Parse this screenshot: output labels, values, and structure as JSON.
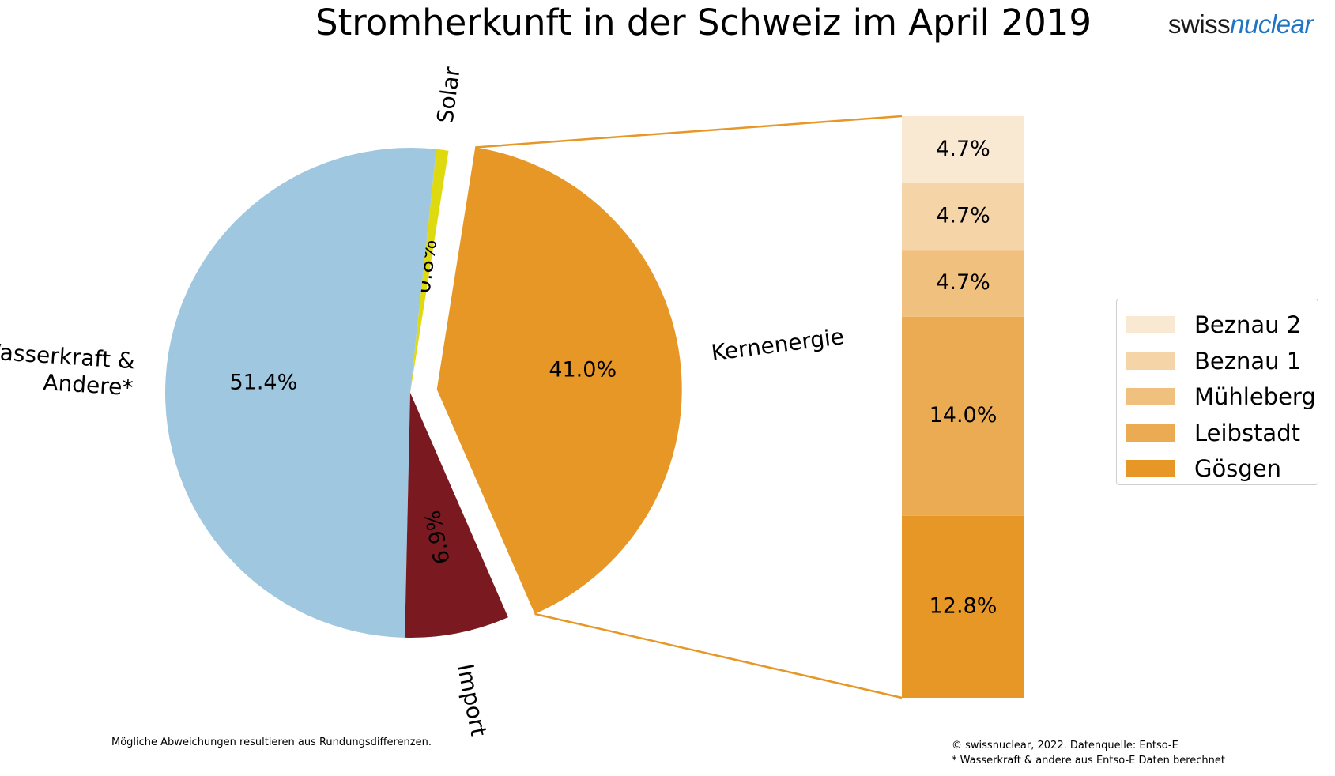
{
  "header": {
    "title": "Stromherkunft in der Schweiz im April 2019",
    "logo_part1": "swiss",
    "logo_part2": "nuclear"
  },
  "chart_data": [
    {
      "type": "pie",
      "slices": [
        {
          "label": "Solar",
          "value": 0.8,
          "value_label": "0.8%",
          "color": "#dfd910"
        },
        {
          "label": "Wasserkraft & Andere*",
          "value": 51.4,
          "value_label": "51.4%",
          "color": "#a0c7e0"
        },
        {
          "label": "Import",
          "value": 6.9,
          "value_label": "6.9%",
          "color": "#7a1a20"
        },
        {
          "label": "Kernenergie",
          "value": 41.0,
          "value_label": "41.0%",
          "color": "#e69726",
          "exploded": true
        }
      ]
    },
    {
      "type": "bar",
      "stacked": true,
      "stack_total": 41.0,
      "series": [
        {
          "name": "Gösgen",
          "value": 12.8,
          "value_label": "12.8%",
          "color": "#e69726"
        },
        {
          "name": "Leibstadt",
          "value": 14.0,
          "value_label": "14.0%",
          "color": "#eaab53"
        },
        {
          "name": "Mühleberg",
          "value": 4.7,
          "value_label": "4.7%",
          "color": "#f0c07e"
        },
        {
          "name": "Beznau 1",
          "value": 4.7,
          "value_label": "4.7%",
          "color": "#f5d5a8"
        },
        {
          "name": "Beznau 2",
          "value": 4.7,
          "value_label": "4.7%",
          "color": "#f9e8d2"
        }
      ],
      "legend": [
        "Beznau 2",
        "Beznau 1",
        "Mühleberg",
        "Leibstadt",
        "Gösgen"
      ],
      "legend_placement": "right"
    }
  ],
  "connector_color": "#e69726",
  "footer": {
    "note_left": "Mögliche Abweichungen resultieren aus Rundungsdifferenzen.",
    "note_right_1": "© swissnuclear, 2022. Datenquelle: Entso-E",
    "note_right_2": "* Wasserkraft & andere aus Entso-E Daten berechnet"
  }
}
